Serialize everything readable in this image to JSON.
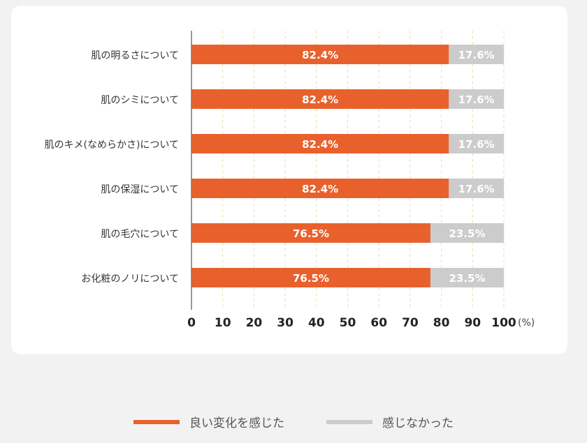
{
  "chart_data": {
    "type": "bar",
    "orientation": "horizontal",
    "stacked": true,
    "categories": [
      "肌の明るさについて",
      "肌のシミについて",
      "肌のキメ(なめらかさ)について",
      "肌の保湿について",
      "肌の毛穴について",
      "お化粧のノリについて"
    ],
    "series": [
      {
        "name": "良い変化を感じた",
        "color": "#e8612c",
        "values": [
          82.4,
          82.4,
          82.4,
          82.4,
          76.5,
          76.5
        ]
      },
      {
        "name": "感じなかった",
        "color": "#cccccc",
        "values": [
          17.6,
          17.6,
          17.6,
          17.6,
          23.5,
          23.5
        ]
      }
    ],
    "value_labels": [
      [
        "82.4%",
        "82.4%",
        "82.4%",
        "82.4%",
        "76.5%",
        "76.5%"
      ],
      [
        "17.6%",
        "17.6%",
        "17.6%",
        "17.6%",
        "23.5%",
        "23.5%"
      ]
    ],
    "xlim": [
      0,
      100
    ],
    "xticks": [
      0,
      10,
      20,
      30,
      40,
      50,
      60,
      70,
      80,
      90,
      100
    ],
    "xunit": "(%)",
    "grid": "vertical dashed",
    "legend_position": "bottom"
  }
}
